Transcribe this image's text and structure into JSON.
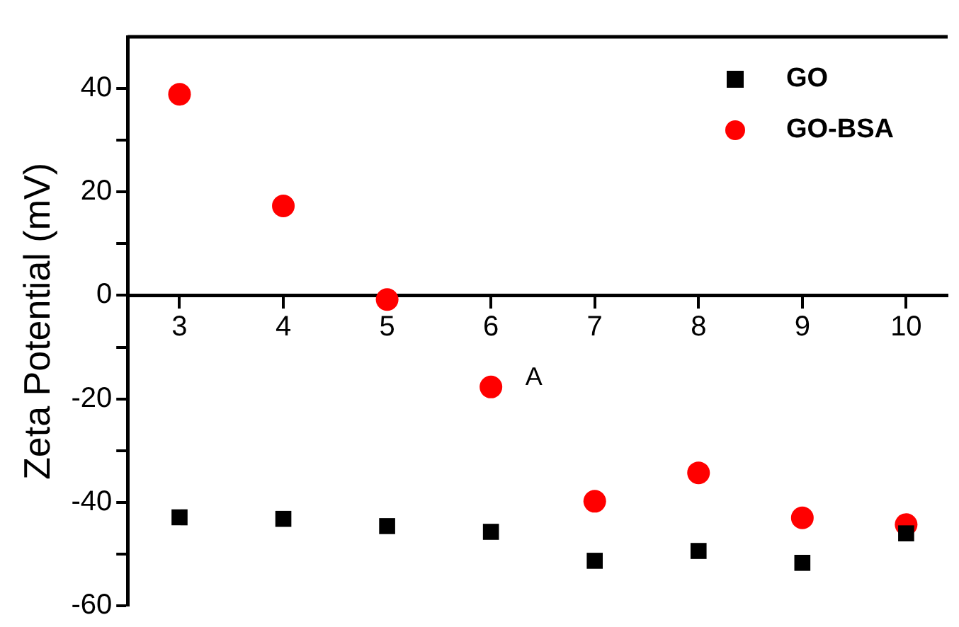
{
  "chart_data": {
    "type": "scatter",
    "ylabel": "Zeta Potential (mV)",
    "x": [
      3,
      4,
      5,
      6,
      7,
      8,
      9,
      10
    ],
    "series": [
      {
        "name": "GO",
        "color": "#000000",
        "marker": "square",
        "values": [
          -42.9,
          -43.2,
          -44.6,
          -45.7,
          -51.3,
          -49.4,
          -51.7,
          -46.0
        ]
      },
      {
        "name": "GO-BSA",
        "color": "#ff0000",
        "marker": "circle",
        "values": [
          38.9,
          17.3,
          -0.8,
          -17.7,
          -39.8,
          -34.3,
          -43.0,
          -44.3
        ]
      }
    ],
    "xlim": [
      2.5,
      10.4
    ],
    "xticks": [
      3,
      4,
      5,
      6,
      7,
      8,
      9,
      10
    ],
    "ylim": [
      -60,
      50
    ],
    "yticks": [
      -60,
      {
        "value": -50,
        "label": null
      },
      -40,
      {
        "value": -30,
        "label": null
      },
      -20,
      {
        "value": -10,
        "label": null
      },
      0,
      {
        "value": 10,
        "label": null
      },
      20,
      {
        "value": 30,
        "label": null
      },
      40
    ],
    "annotations": [
      "A"
    ],
    "legend": "top right",
    "grid": false
  }
}
